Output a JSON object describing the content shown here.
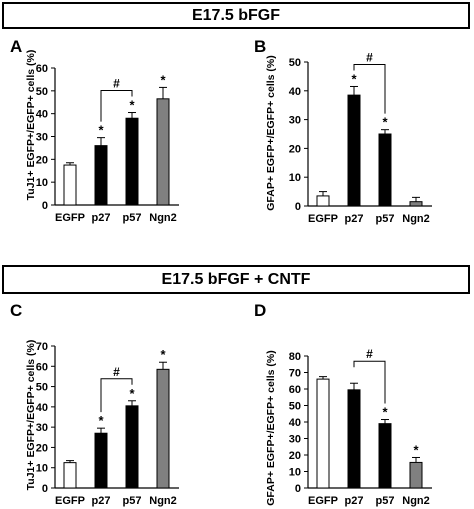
{
  "banners": {
    "top": "E17.5 bFGF",
    "bottom": "E17.5 bFGF + CNTF"
  },
  "colors": {
    "EGFP": "#ffffff",
    "p27": "#000000",
    "p57": "#000000",
    "Ngn2": "#808080",
    "stroke": "#000000"
  },
  "chart_data": [
    {
      "panel": "A",
      "type": "bar",
      "ylabel": "TuJ1+ EGFP+/EGFP+ cells (%)",
      "categories": [
        "EGFP",
        "p27",
        "p57",
        "Ngn2"
      ],
      "values": [
        17.5,
        26,
        38,
        46.5
      ],
      "errors": [
        1,
        3.5,
        2.5,
        5
      ],
      "significance": [
        "",
        "*",
        "*",
        "*"
      ],
      "bracket": {
        "from": 1,
        "to": 2,
        "label": "#"
      },
      "ylim": [
        0,
        60
      ],
      "yticks": [
        0,
        10,
        20,
        30,
        40,
        50,
        60
      ]
    },
    {
      "panel": "B",
      "type": "bar",
      "ylabel": "GFAP+ EGFP+/EGFP+ cells (%)",
      "categories": [
        "EGFP",
        "p27",
        "p57",
        "Ngn2"
      ],
      "values": [
        3.5,
        38.5,
        25,
        1.5
      ],
      "errors": [
        1.5,
        3,
        1.5,
        1.5
      ],
      "significance": [
        "",
        "*",
        "*",
        ""
      ],
      "bracket": {
        "from": 1,
        "to": 2,
        "label": "#"
      },
      "ylim": [
        0,
        50
      ],
      "yticks": [
        0,
        10,
        20,
        30,
        40,
        50
      ]
    },
    {
      "panel": "C",
      "type": "bar",
      "ylabel": "TuJ1+ EGFP+/EGFP+ cells (%)",
      "categories": [
        "EGFP",
        "p27",
        "p57",
        "Ngn2"
      ],
      "values": [
        12.5,
        27,
        40.5,
        58.5
      ],
      "errors": [
        1,
        2.5,
        2.5,
        3.5
      ],
      "significance": [
        "",
        "*",
        "*",
        "*"
      ],
      "bracket": {
        "from": 1,
        "to": 2,
        "label": "#"
      },
      "ylim": [
        0,
        70
      ],
      "yticks": [
        0,
        10,
        20,
        30,
        40,
        50,
        60,
        70
      ]
    },
    {
      "panel": "D",
      "type": "bar",
      "ylabel": "GFAP+ EGFP+/EGFP+ cells (%)",
      "categories": [
        "EGFP",
        "p27",
        "p57",
        "Ngn2"
      ],
      "values": [
        66,
        59.5,
        39,
        15.5
      ],
      "errors": [
        1.5,
        4,
        2.5,
        3
      ],
      "significance": [
        "",
        "",
        "*",
        "*"
      ],
      "bracket": {
        "from": 1,
        "to": 2,
        "label": "#"
      },
      "ylim": [
        0,
        80
      ],
      "yticks": [
        0,
        10,
        20,
        30,
        40,
        50,
        60,
        70,
        80
      ]
    }
  ]
}
